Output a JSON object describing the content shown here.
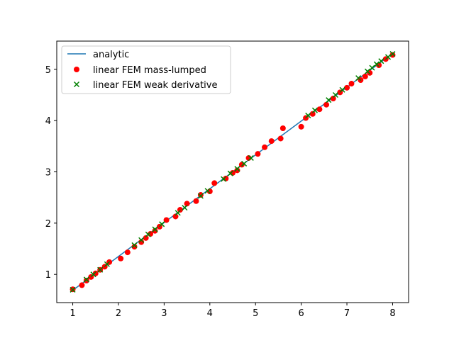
{
  "chart_data": {
    "type": "scatter",
    "title": "",
    "xlabel": "",
    "ylabel": "",
    "xlim": [
      0.65,
      8.35
    ],
    "ylim": [
      0.45,
      5.55
    ],
    "xticks": [
      1,
      2,
      3,
      4,
      5,
      6,
      7,
      8
    ],
    "yticks": [
      1,
      2,
      3,
      4,
      5
    ],
    "xtick_labels": [
      "1",
      "2",
      "3",
      "4",
      "5",
      "6",
      "7",
      "8"
    ],
    "ytick_labels": [
      "1",
      "2",
      "3",
      "4",
      "5"
    ],
    "grid": false,
    "legend_position": "top-left",
    "series": [
      {
        "name": "analytic",
        "kind": "line",
        "color": "#1f77b4",
        "x": [
          1,
          8
        ],
        "y": [
          0.69,
          5.31
        ]
      },
      {
        "name": "linear FEM mass-lumped",
        "kind": "scatter",
        "marker": "circle",
        "color": "#ff0000",
        "x": [
          1.0,
          1.2,
          1.3,
          1.4,
          1.5,
          1.6,
          1.7,
          1.8,
          2.05,
          2.2,
          2.35,
          2.5,
          2.6,
          2.7,
          2.8,
          2.9,
          3.05,
          3.25,
          3.35,
          3.5,
          3.7,
          3.8,
          4.0,
          4.1,
          4.35,
          4.5,
          4.6,
          4.7,
          4.85,
          5.05,
          5.2,
          5.35,
          5.55,
          5.6,
          6.0,
          6.1,
          6.25,
          6.4,
          6.55,
          6.7,
          6.85,
          7.0,
          7.1,
          7.3,
          7.4,
          7.5,
          7.7,
          7.85,
          8.0
        ],
        "y": [
          0.71,
          0.79,
          0.88,
          0.95,
          1.02,
          1.09,
          1.15,
          1.24,
          1.31,
          1.43,
          1.54,
          1.63,
          1.71,
          1.79,
          1.85,
          1.93,
          2.06,
          2.13,
          2.26,
          2.38,
          2.43,
          2.55,
          2.62,
          2.78,
          2.87,
          2.98,
          3.03,
          3.14,
          3.27,
          3.35,
          3.48,
          3.6,
          3.65,
          3.85,
          3.88,
          4.05,
          4.13,
          4.22,
          4.31,
          4.43,
          4.55,
          4.64,
          4.72,
          4.79,
          4.86,
          4.93,
          5.08,
          5.2,
          5.28
        ]
      },
      {
        "name": "linear FEM weak derivative",
        "kind": "scatter",
        "marker": "x",
        "color": "#008000",
        "x": [
          1.0,
          1.3,
          1.45,
          1.6,
          1.75,
          2.35,
          2.5,
          2.65,
          2.8,
          2.95,
          3.3,
          3.45,
          3.8,
          3.95,
          4.3,
          4.45,
          4.6,
          4.75,
          4.9,
          6.15,
          6.3,
          6.6,
          6.75,
          6.9,
          7.25,
          7.45,
          7.55,
          7.65,
          7.75,
          7.9,
          8.0
        ],
        "y": [
          0.7,
          0.9,
          1.0,
          1.09,
          1.2,
          1.57,
          1.67,
          1.78,
          1.88,
          1.98,
          2.2,
          2.3,
          2.53,
          2.63,
          2.86,
          2.97,
          3.06,
          3.16,
          3.27,
          4.1,
          4.2,
          4.4,
          4.5,
          4.6,
          4.83,
          4.96,
          5.03,
          5.1,
          5.16,
          5.24,
          5.3
        ]
      }
    ]
  }
}
